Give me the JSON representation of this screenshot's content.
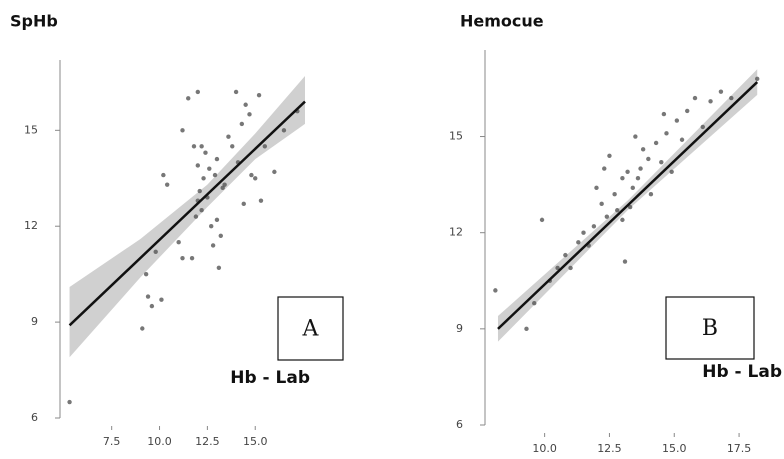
{
  "chart_data": [
    {
      "type": "scatter",
      "title": "SpHb",
      "x_label": "Hb - Lab",
      "annotation": "A",
      "color": "#555555",
      "xlim": [
        4.8,
        17.6
      ],
      "ylim": [
        6,
        17.2
      ],
      "xticks": [
        7.5,
        {
          "value": 10,
          "label": "10.0"
        },
        12.5,
        {
          "value": 15,
          "label": "15.0"
        }
      ],
      "yticks": [
        6,
        9,
        12,
        15
      ],
      "x": [
        5.3,
        9.1,
        9.4,
        9.6,
        10.1,
        9.3,
        9.8,
        10.2,
        10.4,
        11.2,
        11.5,
        12.0,
        11.8,
        12.2,
        12.4,
        12.0,
        12.3,
        12.1,
        12.5,
        12.2,
        11.9,
        12.7,
        13.0,
        13.2,
        12.8,
        13.1,
        11.7,
        11.2,
        11.0,
        12.6,
        13.4,
        13.8,
        14.0,
        14.5,
        14.7,
        14.3,
        15.2,
        14.1,
        13.6,
        14.8,
        15.0,
        15.3,
        14.4,
        16.0,
        16.5,
        17.2,
        15.5,
        13.0,
        12.9,
        13.3,
        12.0
      ],
      "values": [
        6.5,
        8.8,
        9.8,
        9.5,
        9.7,
        10.5,
        11.2,
        13.6,
        13.3,
        15.0,
        16.0,
        16.2,
        14.5,
        14.5,
        14.3,
        13.9,
        13.5,
        13.1,
        12.9,
        12.5,
        12.3,
        12.0,
        12.2,
        11.7,
        11.4,
        10.7,
        11.0,
        11.0,
        11.5,
        13.8,
        13.3,
        14.5,
        16.2,
        15.8,
        15.5,
        15.2,
        16.1,
        14.0,
        14.8,
        13.6,
        13.5,
        12.8,
        12.7,
        13.7,
        15.0,
        15.6,
        14.5,
        14.1,
        13.6,
        13.2,
        12.8
      ],
      "fit_line": {
        "color": "#111111",
        "x": [
          5.3,
          17.6
        ],
        "values": [
          8.9,
          15.9
        ]
      },
      "band": {
        "color": "#d0d0d0",
        "x": [
          5.3,
          9,
          12.5,
          15,
          17.6
        ],
        "lower": [
          7.9,
          10.4,
          12.6,
          14.1,
          15.2
        ],
        "upper": [
          10.1,
          11.6,
          13.3,
          14.9,
          16.7
        ]
      }
    },
    {
      "type": "scatter",
      "title": "Hemocue",
      "x_label": "Hb - Lab",
      "annotation": "B",
      "color": "#555555",
      "xlim": [
        7.7,
        18.5
      ],
      "ylim": [
        6,
        17.7
      ],
      "xticks": [
        {
          "value": 10,
          "label": "10.0"
        },
        12.5,
        {
          "value": 15,
          "label": "15.0"
        },
        17.5
      ],
      "yticks": [
        6,
        9,
        12,
        15
      ],
      "x": [
        8.1,
        9.3,
        9.6,
        9.9,
        10.2,
        10.5,
        10.8,
        11.0,
        11.3,
        11.5,
        11.7,
        12.0,
        12.2,
        12.4,
        12.5,
        12.7,
        12.8,
        13.0,
        13.1,
        13.2,
        13.3,
        13.4,
        13.5,
        13.6,
        13.8,
        14.0,
        14.1,
        14.3,
        14.5,
        14.7,
        14.9,
        15.1,
        15.3,
        15.5,
        15.8,
        16.1,
        16.4,
        16.8,
        17.2,
        18.2,
        13.0,
        12.3,
        13.7,
        14.6,
        11.9
      ],
      "values": [
        10.2,
        9.0,
        9.8,
        12.4,
        10.5,
        10.9,
        11.3,
        10.9,
        11.7,
        12.0,
        11.6,
        13.4,
        12.9,
        12.5,
        14.4,
        13.2,
        12.7,
        13.7,
        11.1,
        13.9,
        12.8,
        13.4,
        15.0,
        13.7,
        14.6,
        14.3,
        13.2,
        14.8,
        14.2,
        15.1,
        13.9,
        15.5,
        14.9,
        15.8,
        16.2,
        15.3,
        16.1,
        16.4,
        16.2,
        16.8,
        12.4,
        14.0,
        14.0,
        15.7,
        12.2
      ],
      "fit_line": {
        "color": "#111111",
        "x": [
          8.2,
          18.2
        ],
        "values": [
          9.0,
          16.7
        ]
      },
      "band": {
        "color": "#d0d0d0",
        "x": [
          8.2,
          13.2,
          18.2
        ],
        "lower": [
          8.6,
          12.7,
          16.3
        ],
        "upper": [
          9.4,
          13.0,
          17.1
        ]
      }
    }
  ]
}
